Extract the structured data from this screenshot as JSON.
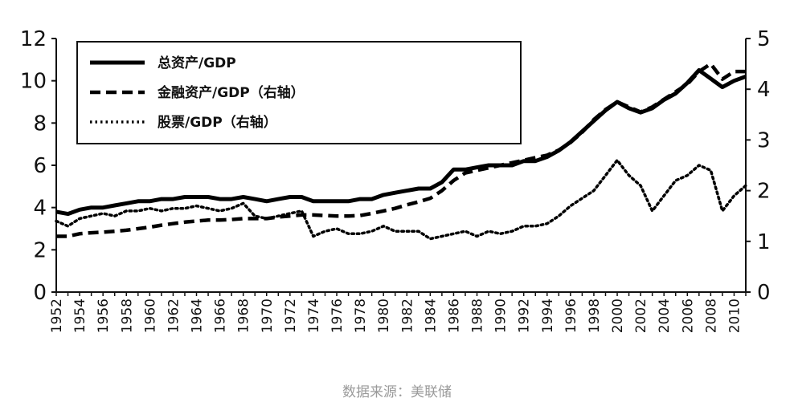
{
  "chart_data": {
    "type": "line",
    "title": "",
    "xlabel": "",
    "ylabel_left": "",
    "ylabel_right": "",
    "xlim": [
      1952,
      2011
    ],
    "ylim_left": [
      0,
      12
    ],
    "ylim_right": [
      0,
      5
    ],
    "left_ticks": [
      0,
      2,
      4,
      6,
      8,
      10,
      12
    ],
    "right_ticks": [
      0,
      1,
      2,
      3,
      4,
      5
    ],
    "x_tick_labels": [
      "1952",
      "1954",
      "1956",
      "1958",
      "1960",
      "1962",
      "1964",
      "1966",
      "1968",
      "1970",
      "1972",
      "1974",
      "1976",
      "1978",
      "1980",
      "1982",
      "1984",
      "1986",
      "1988",
      "1990",
      "1992",
      "1994",
      "1996",
      "1998",
      "2000",
      "2002",
      "2004",
      "2006",
      "2008",
      "2010"
    ],
    "grid": false,
    "legend_position": "top-left",
    "series": [
      {
        "name": "总资产/GDP",
        "axis": "left",
        "style": "solid",
        "x": [
          1952,
          1953,
          1954,
          1955,
          1956,
          1957,
          1958,
          1959,
          1960,
          1961,
          1962,
          1963,
          1964,
          1965,
          1966,
          1967,
          1968,
          1969,
          1970,
          1971,
          1972,
          1973,
          1974,
          1975,
          1976,
          1977,
          1978,
          1979,
          1980,
          1981,
          1982,
          1983,
          1984,
          1985,
          1986,
          1987,
          1988,
          1989,
          1990,
          1991,
          1992,
          1993,
          1994,
          1995,
          1996,
          1997,
          1998,
          1999,
          2000,
          2001,
          2002,
          2003,
          2004,
          2005,
          2006,
          2007,
          2008,
          2009,
          2010,
          2011
        ],
        "values": [
          3.8,
          3.7,
          3.9,
          4.0,
          4.0,
          4.1,
          4.2,
          4.3,
          4.3,
          4.4,
          4.4,
          4.5,
          4.5,
          4.5,
          4.4,
          4.4,
          4.5,
          4.4,
          4.3,
          4.4,
          4.5,
          4.5,
          4.3,
          4.3,
          4.3,
          4.3,
          4.4,
          4.4,
          4.6,
          4.7,
          4.8,
          4.9,
          4.9,
          5.2,
          5.8,
          5.8,
          5.9,
          6.0,
          6.0,
          6.0,
          6.2,
          6.2,
          6.4,
          6.7,
          7.1,
          7.6,
          8.1,
          8.6,
          9.0,
          8.7,
          8.5,
          8.7,
          9.1,
          9.4,
          9.9,
          10.5,
          10.1,
          9.7,
          10.0,
          10.2
        ]
      },
      {
        "name": "金融资产/GDP（右轴）",
        "axis": "right",
        "style": "dashed",
        "x": [
          1952,
          1953,
          1954,
          1955,
          1956,
          1957,
          1958,
          1959,
          1960,
          1961,
          1962,
          1963,
          1964,
          1965,
          1966,
          1967,
          1968,
          1969,
          1970,
          1971,
          1972,
          1973,
          1974,
          1975,
          1976,
          1977,
          1978,
          1979,
          1980,
          1981,
          1982,
          1983,
          1984,
          1985,
          1986,
          1987,
          1988,
          1989,
          1990,
          1991,
          1992,
          1993,
          1994,
          1995,
          1996,
          1997,
          1998,
          1999,
          2000,
          2001,
          2002,
          2003,
          2004,
          2005,
          2006,
          2007,
          2008,
          2009,
          2010,
          2011
        ],
        "values": [
          1.1,
          1.1,
          1.15,
          1.17,
          1.18,
          1.2,
          1.22,
          1.25,
          1.28,
          1.32,
          1.35,
          1.38,
          1.4,
          1.42,
          1.42,
          1.43,
          1.45,
          1.45,
          1.45,
          1.48,
          1.5,
          1.52,
          1.52,
          1.51,
          1.5,
          1.5,
          1.51,
          1.55,
          1.6,
          1.65,
          1.72,
          1.78,
          1.85,
          2.0,
          2.2,
          2.35,
          2.4,
          2.45,
          2.5,
          2.55,
          2.6,
          2.65,
          2.7,
          2.8,
          2.95,
          3.15,
          3.4,
          3.6,
          3.75,
          3.65,
          3.55,
          3.65,
          3.8,
          3.95,
          4.1,
          4.35,
          4.5,
          4.2,
          4.35,
          4.35
        ]
      },
      {
        "name": "股票/GDP（右轴）",
        "axis": "right",
        "style": "dotted",
        "x": [
          1952,
          1953,
          1954,
          1955,
          1956,
          1957,
          1958,
          1959,
          1960,
          1961,
          1962,
          1963,
          1964,
          1965,
          1966,
          1967,
          1968,
          1969,
          1970,
          1971,
          1972,
          1973,
          1974,
          1975,
          1976,
          1977,
          1978,
          1979,
          1980,
          1981,
          1982,
          1983,
          1984,
          1985,
          1986,
          1987,
          1988,
          1989,
          1990,
          1991,
          1992,
          1993,
          1994,
          1995,
          1996,
          1997,
          1998,
          1999,
          2000,
          2001,
          2002,
          2003,
          2004,
          2005,
          2006,
          2007,
          2008,
          2009,
          2010,
          2011
        ],
        "values": [
          1.4,
          1.3,
          1.45,
          1.5,
          1.55,
          1.5,
          1.6,
          1.6,
          1.65,
          1.6,
          1.65,
          1.65,
          1.7,
          1.65,
          1.6,
          1.65,
          1.75,
          1.5,
          1.45,
          1.5,
          1.55,
          1.6,
          1.1,
          1.2,
          1.25,
          1.15,
          1.15,
          1.2,
          1.3,
          1.2,
          1.2,
          1.2,
          1.05,
          1.1,
          1.15,
          1.2,
          1.1,
          1.2,
          1.15,
          1.2,
          1.3,
          1.3,
          1.35,
          1.5,
          1.7,
          1.85,
          2.0,
          2.3,
          2.6,
          2.3,
          2.1,
          1.6,
          1.9,
          2.2,
          2.3,
          2.5,
          2.4,
          1.6,
          1.9,
          2.1
        ]
      }
    ]
  },
  "source_text": "数据来源：美联储"
}
